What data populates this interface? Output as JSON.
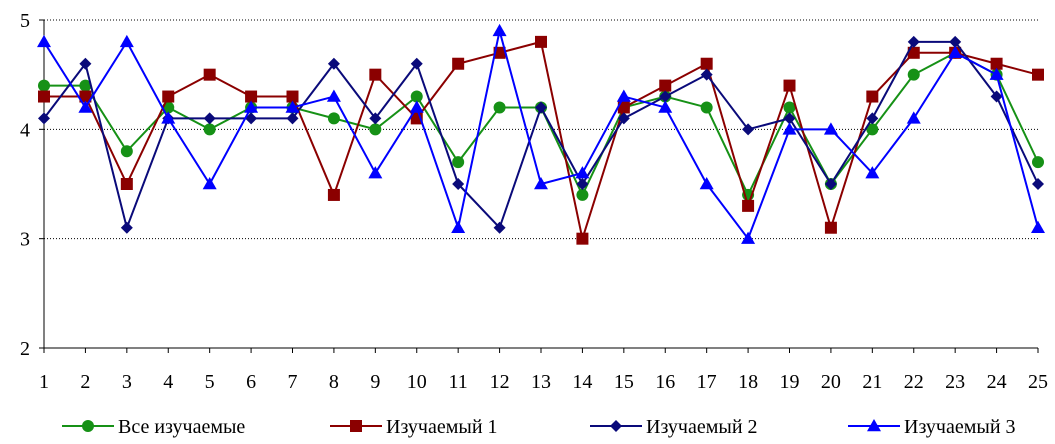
{
  "chart_data": {
    "type": "line",
    "title": "",
    "xlabel": "",
    "ylabel": "",
    "x": [
      1,
      2,
      3,
      4,
      5,
      6,
      7,
      8,
      9,
      10,
      11,
      12,
      13,
      14,
      15,
      16,
      17,
      18,
      19,
      20,
      21,
      22,
      23,
      24,
      25
    ],
    "ylim": [
      2,
      5
    ],
    "yticks": [
      2,
      3,
      4,
      5
    ],
    "grid": "horizontal dotted",
    "legend": "bottom",
    "series": [
      {
        "name": "Все изучаемые",
        "color": "#169116",
        "marker": "circle",
        "values": [
          4.4,
          4.4,
          3.8,
          4.2,
          4.0,
          4.2,
          4.2,
          4.1,
          4.0,
          4.3,
          3.7,
          4.2,
          4.2,
          3.4,
          4.2,
          4.3,
          4.2,
          3.4,
          4.2,
          3.5,
          4.0,
          4.5,
          4.7,
          4.5,
          3.7
        ]
      },
      {
        "name": "Изучаемый 1",
        "color": "#8b0000",
        "marker": "square",
        "values": [
          4.3,
          4.3,
          3.5,
          4.3,
          4.5,
          4.3,
          4.3,
          3.4,
          4.5,
          4.1,
          4.6,
          4.7,
          4.8,
          3.0,
          4.2,
          4.4,
          4.6,
          3.3,
          4.4,
          3.1,
          4.3,
          4.7,
          4.7,
          4.6,
          4.5
        ]
      },
      {
        "name": "Изучаемый 2",
        "color": "#0a0a7a",
        "marker": "diamond",
        "values": [
          4.1,
          4.6,
          3.1,
          4.1,
          4.1,
          4.1,
          4.1,
          4.6,
          4.1,
          4.6,
          3.5,
          3.1,
          4.2,
          3.5,
          4.1,
          4.3,
          4.5,
          4.0,
          4.1,
          3.5,
          4.1,
          4.8,
          4.8,
          4.3,
          3.5
        ]
      },
      {
        "name": "Изучаемый 3",
        "color": "#0000ff",
        "marker": "triangle",
        "values": [
          4.8,
          4.2,
          4.8,
          4.1,
          3.5,
          4.2,
          4.2,
          4.3,
          3.6,
          4.2,
          3.1,
          4.9,
          3.5,
          3.6,
          4.3,
          4.2,
          3.5,
          3.0,
          4.0,
          4.0,
          3.6,
          4.1,
          4.7,
          4.5,
          3.1
        ]
      }
    ]
  }
}
